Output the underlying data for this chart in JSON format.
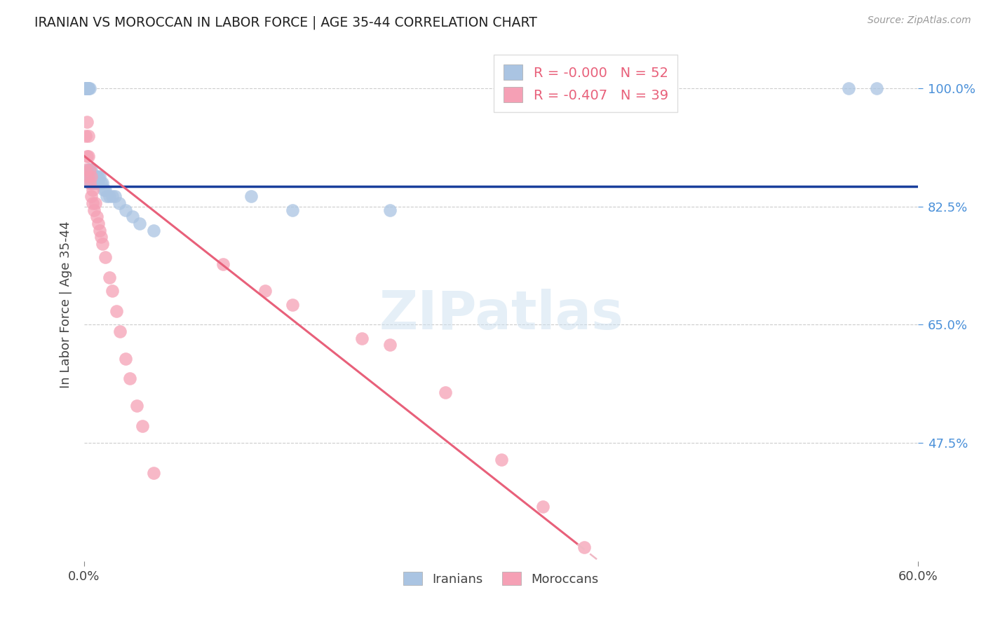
{
  "title": "IRANIAN VS MOROCCAN IN LABOR FORCE | AGE 35-44 CORRELATION CHART",
  "source": "Source: ZipAtlas.com",
  "ylabel": "In Labor Force | Age 35-44",
  "ytick_labels": [
    "100.0%",
    "82.5%",
    "65.0%",
    "47.5%"
  ],
  "ytick_values": [
    1.0,
    0.825,
    0.65,
    0.475
  ],
  "xlim": [
    0.0,
    0.6
  ],
  "ylim": [
    0.3,
    1.06
  ],
  "legend_r_iranian": "-0.000",
  "legend_n_iranian": "52",
  "legend_r_moroccan": "-0.407",
  "legend_n_moroccan": "39",
  "iranian_color": "#aac4e2",
  "moroccan_color": "#f5a0b5",
  "trend_iranian_color": "#1a3f9c",
  "trend_moroccan_solid_color": "#e8607a",
  "trend_moroccan_dashed_color": "#f0b8c4",
  "watermark": "ZIPatlas",
  "background_color": "#ffffff",
  "grid_color": "#cccccc",
  "title_color": "#222222",
  "axis_label_color": "#444444",
  "ytick_color": "#4a90d9",
  "xtick_color": "#444444",
  "trend_iranian_y": 0.855,
  "trend_moroccan_intercept": 0.9,
  "trend_moroccan_slope": -1.62,
  "trend_solid_end": 0.355,
  "iran_x": [
    0.001,
    0.001,
    0.001,
    0.002,
    0.002,
    0.002,
    0.002,
    0.003,
    0.003,
    0.003,
    0.003,
    0.003,
    0.004,
    0.004,
    0.004,
    0.004,
    0.004,
    0.005,
    0.005,
    0.005,
    0.005,
    0.006,
    0.006,
    0.006,
    0.007,
    0.007,
    0.007,
    0.008,
    0.008,
    0.009,
    0.009,
    0.01,
    0.01,
    0.011,
    0.012,
    0.013,
    0.014,
    0.015,
    0.016,
    0.018,
    0.02,
    0.022,
    0.025,
    0.03,
    0.035,
    0.04,
    0.05,
    0.12,
    0.15,
    0.22,
    0.55,
    0.57
  ],
  "iran_y": [
    1.0,
    1.0,
    1.0,
    1.0,
    1.0,
    1.0,
    1.0,
    1.0,
    1.0,
    1.0,
    0.87,
    0.88,
    1.0,
    0.88,
    0.88,
    0.87,
    0.86,
    0.88,
    0.87,
    0.86,
    0.86,
    0.87,
    0.86,
    0.86,
    0.87,
    0.87,
    0.86,
    0.87,
    0.86,
    0.86,
    0.87,
    0.86,
    0.87,
    0.87,
    0.86,
    0.86,
    0.85,
    0.85,
    0.84,
    0.84,
    0.84,
    0.84,
    0.83,
    0.82,
    0.81,
    0.8,
    0.79,
    0.84,
    0.82,
    0.82,
    1.0,
    1.0
  ],
  "mor_x": [
    0.001,
    0.001,
    0.002,
    0.002,
    0.003,
    0.003,
    0.003,
    0.004,
    0.004,
    0.005,
    0.005,
    0.006,
    0.006,
    0.007,
    0.008,
    0.009,
    0.01,
    0.011,
    0.012,
    0.013,
    0.015,
    0.018,
    0.02,
    0.023,
    0.026,
    0.03,
    0.033,
    0.038,
    0.042,
    0.05,
    0.1,
    0.13,
    0.15,
    0.2,
    0.22,
    0.26,
    0.3,
    0.33,
    0.36
  ],
  "mor_y": [
    0.93,
    0.88,
    0.95,
    0.9,
    0.93,
    0.9,
    0.87,
    0.88,
    0.86,
    0.87,
    0.84,
    0.85,
    0.83,
    0.82,
    0.83,
    0.81,
    0.8,
    0.79,
    0.78,
    0.77,
    0.75,
    0.72,
    0.7,
    0.67,
    0.64,
    0.6,
    0.57,
    0.53,
    0.5,
    0.43,
    0.74,
    0.7,
    0.68,
    0.63,
    0.62,
    0.55,
    0.45,
    0.38,
    0.32
  ]
}
